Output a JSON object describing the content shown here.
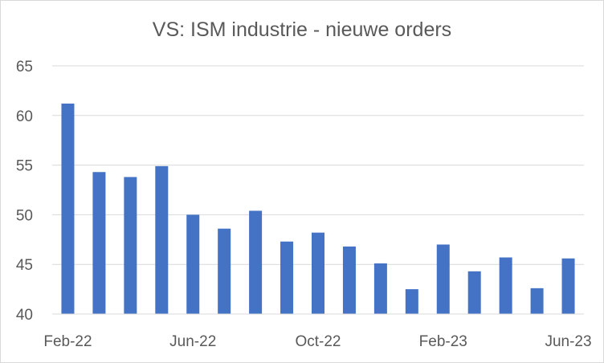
{
  "chart_data": {
    "type": "bar",
    "title": "VS: ISM industrie - nieuwe orders",
    "xlabel": "",
    "ylabel": "",
    "ylim": [
      40,
      65
    ],
    "yticks": [
      40,
      45,
      50,
      55,
      60,
      65
    ],
    "grid": true,
    "legend": "none",
    "bar_color": "#4472c4",
    "categories": [
      "Feb-22",
      "Mar-22",
      "Apr-22",
      "May-22",
      "Jun-22",
      "Jul-22",
      "Aug-22",
      "Sep-22",
      "Oct-22",
      "Nov-22",
      "Dec-22",
      "Jan-23",
      "Feb-23",
      "Mar-23",
      "Apr-23",
      "May-23",
      "Jun-23"
    ],
    "xtick_labels": [
      "Feb-22",
      "Jun-22",
      "Oct-22",
      "Feb-23",
      "Jun-23"
    ],
    "values": [
      61.2,
      54.3,
      53.8,
      54.9,
      50.0,
      48.6,
      50.4,
      47.3,
      48.2,
      46.8,
      45.1,
      42.5,
      47.0,
      44.3,
      45.7,
      42.6,
      45.6
    ]
  }
}
